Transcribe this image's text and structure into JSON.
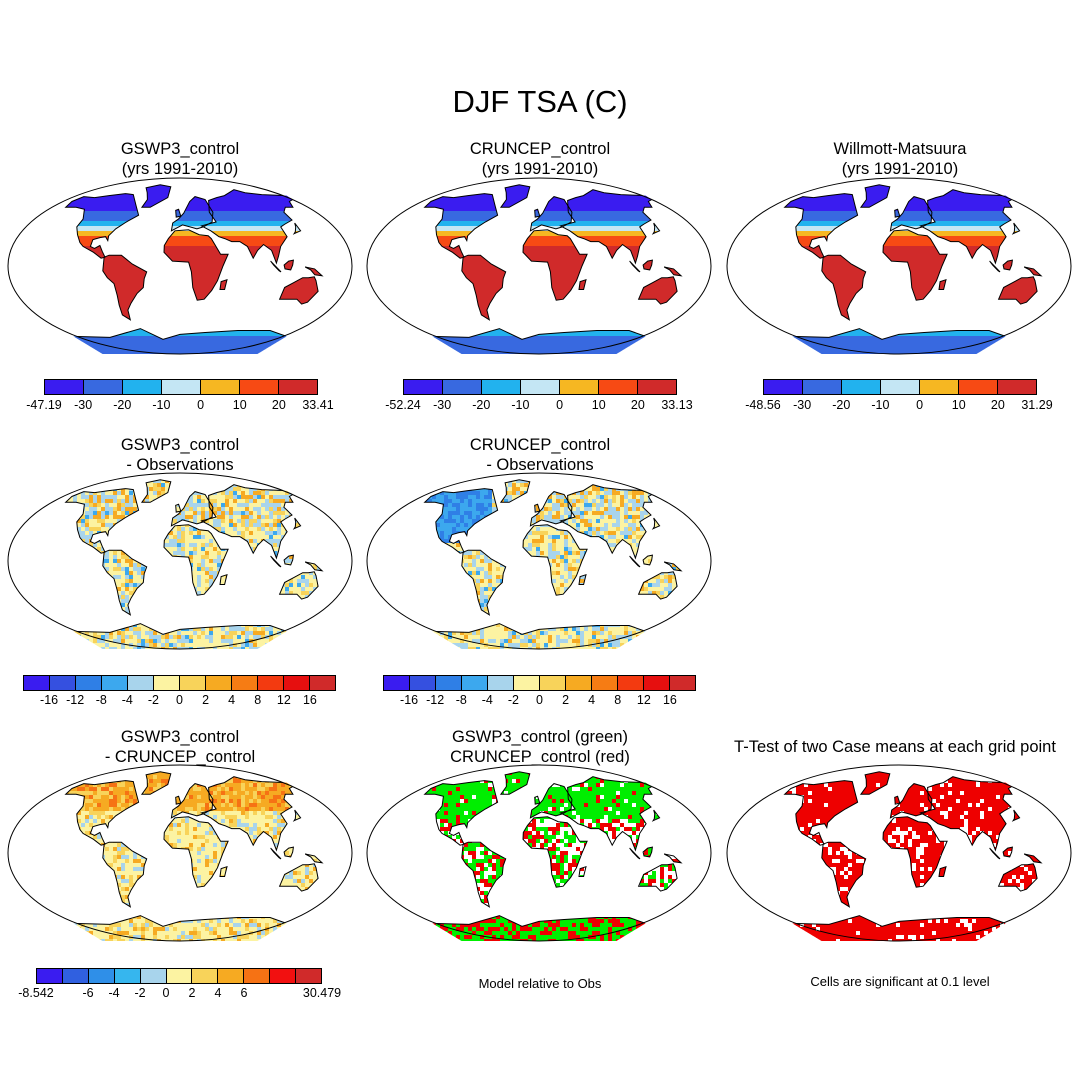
{
  "title": "DJF TSA (C)",
  "panels": [
    {
      "id": "p1",
      "title1": "GSWP3_control",
      "title2": "(yrs 1991-2010)",
      "style": "abs-gswp"
    },
    {
      "id": "p2",
      "title1": "CRUNCEP_control",
      "title2": "(yrs 1991-2010)",
      "style": "abs-cru"
    },
    {
      "id": "p3",
      "title1": "Willmott-Matsuura",
      "title2": "(yrs 1991-2010)",
      "style": "abs-wm"
    },
    {
      "id": "p4",
      "title1": "GSWP3_control",
      "title2": "- Observations",
      "style": "diff-gswp"
    },
    {
      "id": "p5",
      "title1": "CRUNCEP_control",
      "title2": "- Observations",
      "style": "diff-cru"
    },
    {
      "id": "p6",
      "title1": "GSWP3_control",
      "title2": "- CRUNCEP_control",
      "style": "diff-models"
    },
    {
      "id": "p7",
      "title1": "GSWP3_control (green)",
      "title2": "CRUNCEP_control (red)",
      "style": "rel"
    },
    {
      "id": "p8",
      "title1": "T-Test of two Case means at each grid point",
      "title2": "",
      "style": "ttest"
    }
  ],
  "colorbars": {
    "abs_colors": [
      "#3a1cf0",
      "#3869e0",
      "#22b2ee",
      "#c4e6f4",
      "#f6b722",
      "#f74a14",
      "#d02a2a"
    ],
    "abs1_ticks": [
      "-47.19",
      "-30",
      "-20",
      "-10",
      "0",
      "10",
      "20",
      "33.41"
    ],
    "abs2_ticks": [
      "-52.24",
      "-30",
      "-20",
      "-10",
      "0",
      "10",
      "20",
      "33.13"
    ],
    "abs3_ticks": [
      "-48.56",
      "-30",
      "-20",
      "-10",
      "0",
      "10",
      "20",
      "31.29"
    ],
    "diff_colors": [
      "#3a1cf0",
      "#3550e0",
      "#2f7fe6",
      "#3ca8ee",
      "#a8d4ec",
      "#fcf3a2",
      "#f8d35a",
      "#f6aa22",
      "#f67c14",
      "#f33a10",
      "#e60f0f",
      "#d02a2a"
    ],
    "diff_ticks": [
      "-16",
      "-12",
      "-8",
      "-4",
      "-2",
      "0",
      "2",
      "4",
      "8",
      "12",
      "16"
    ],
    "mdiff_colors": [
      "#3a1cf0",
      "#3060e0",
      "#2f8fe8",
      "#36b6ee",
      "#a8d4ec",
      "#fcf3a2",
      "#f8d35a",
      "#f6aa22",
      "#f67214",
      "#f21010",
      "#d02a2a"
    ],
    "mdiff_ticks": [
      "-8.542",
      "-6",
      "-4",
      "-2",
      "0",
      "2",
      "4",
      "6",
      "30.479"
    ]
  },
  "notes": {
    "relative": "Model relative to Obs",
    "ttest": "Cells are significant at 0.1 level"
  },
  "palette": {
    "land_warm": "#d02a2a",
    "land_green": "#00ee00",
    "land_red": "#ee0000",
    "outline": "#000000"
  }
}
